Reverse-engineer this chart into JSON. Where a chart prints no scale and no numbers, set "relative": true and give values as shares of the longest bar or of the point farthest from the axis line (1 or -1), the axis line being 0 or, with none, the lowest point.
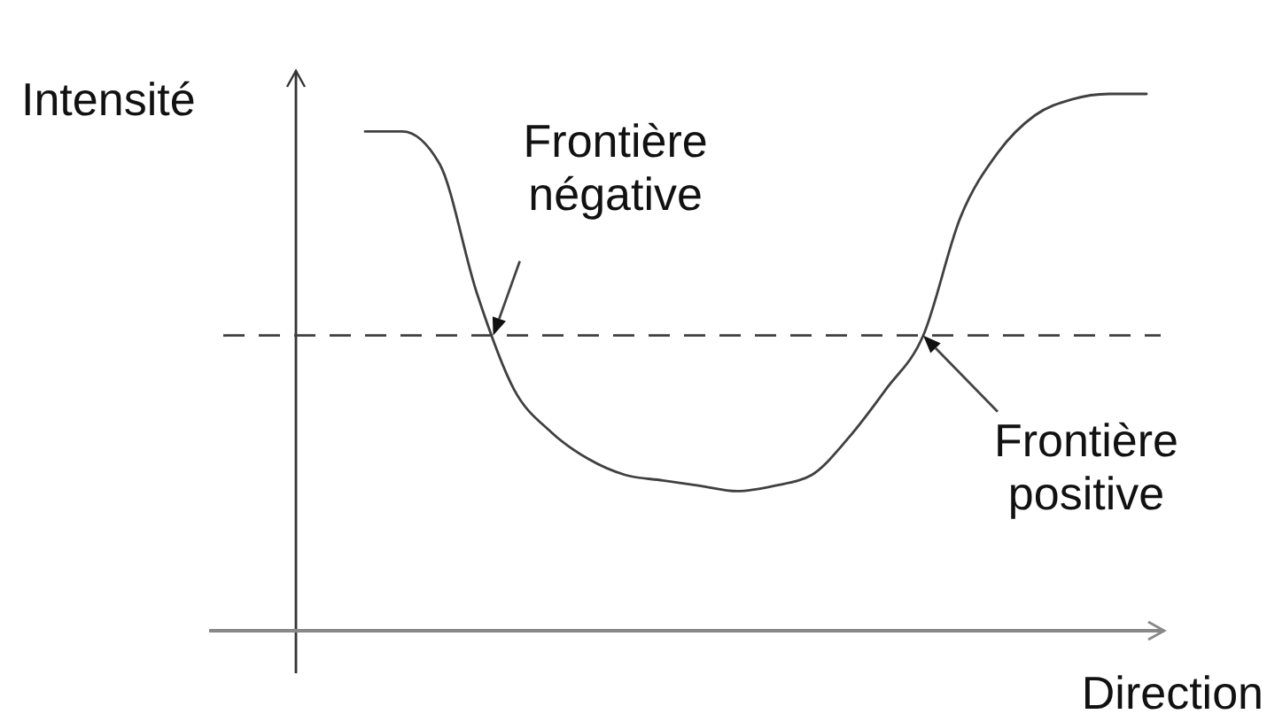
{
  "chart_data": {
    "type": "line",
    "xlabel": "Direction",
    "ylabel": "Intensité",
    "relative": true,
    "categories": [
      null,
      null,
      null,
      null,
      null,
      null,
      null,
      null,
      null,
      null,
      null,
      null,
      null,
      null,
      null,
      null,
      null,
      null,
      null,
      null,
      null,
      null
    ],
    "values": [
      0.93,
      0.93,
      0.87,
      0.63,
      0.45,
      0.37,
      0.32,
      0.29,
      0.28,
      0.27,
      0.26,
      0.27,
      0.29,
      0.36,
      0.45,
      0.55,
      0.77,
      0.89,
      0.96,
      0.99,
      1.0,
      1.0
    ],
    "color": "#404040",
    "ref_lines": [
      {
        "axis": "y",
        "value": 0.55,
        "color": "#404040",
        "line_style": "dashed"
      }
    ],
    "annotations": [
      "Frontière négative",
      "Frontière positive"
    ]
  }
}
